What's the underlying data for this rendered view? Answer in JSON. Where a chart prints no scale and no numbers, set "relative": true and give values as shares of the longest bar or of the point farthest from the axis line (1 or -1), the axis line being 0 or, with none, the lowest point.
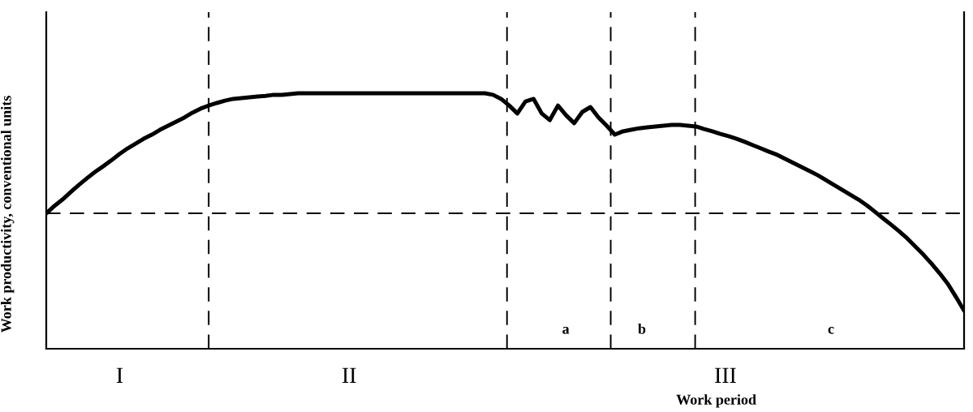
{
  "chart_data": {
    "type": "line",
    "relative": true,
    "xlabel": "Work period",
    "ylabel": "Work productivity, conventional units",
    "categories": [
      null,
      null,
      null,
      null,
      null,
      null,
      null,
      null,
      null,
      null,
      null,
      null,
      null,
      null,
      null,
      null,
      null,
      null,
      null,
      null,
      null,
      null,
      null,
      null,
      null,
      null,
      null,
      null,
      null,
      null,
      null,
      null,
      null,
      null,
      null,
      null,
      null,
      null,
      null,
      null,
      null,
      null,
      null,
      null,
      null,
      null,
      null,
      null,
      null,
      null,
      null,
      null,
      null,
      null,
      null,
      null,
      null,
      null,
      null,
      null,
      null,
      null,
      null,
      null,
      null,
      null,
      null,
      null,
      null,
      null,
      null,
      null,
      null,
      null,
      null,
      null,
      null,
      null,
      null,
      null,
      null,
      null,
      null,
      null,
      null,
      null,
      null,
      null,
      null,
      null,
      null,
      null,
      null,
      null,
      null,
      null,
      null,
      null,
      null,
      null,
      null,
      null,
      null,
      null,
      null,
      null,
      null,
      null,
      null,
      null,
      null,
      null,
      null,
      null
    ],
    "annotations": [
      "I",
      "II",
      "III",
      "a",
      "b",
      "c"
    ],
    "series": [
      {
        "color": "#000000",
        "values": [
          0.53,
          0.559,
          0.584,
          0.613,
          0.641,
          0.667,
          0.692,
          0.714,
          0.737,
          0.762,
          0.784,
          0.803,
          0.822,
          0.838,
          0.857,
          0.873,
          0.889,
          0.905,
          0.924,
          0.94,
          0.952,
          0.962,
          0.971,
          0.978,
          0.981,
          0.984,
          0.987,
          0.99,
          0.994,
          0.994,
          0.997,
          1.0,
          1.0,
          1.0,
          1.0,
          1.0,
          1.0,
          1.0,
          1.0,
          1.0,
          1.0,
          1.0,
          1.0,
          1.0,
          1.0,
          1.0,
          1.0,
          1.0,
          1.0,
          1.0,
          1.0,
          1.0,
          1.0,
          1.0,
          1.0,
          0.994,
          0.978,
          0.952,
          0.921,
          0.968,
          0.978,
          0.921,
          0.895,
          0.952,
          0.914,
          0.883,
          0.927,
          0.946,
          0.905,
          0.873,
          0.838,
          0.851,
          0.857,
          0.863,
          0.867,
          0.87,
          0.873,
          0.876,
          0.876,
          0.873,
          0.87,
          0.86,
          0.851,
          0.841,
          0.832,
          0.822,
          0.81,
          0.797,
          0.784,
          0.771,
          0.759,
          0.743,
          0.727,
          0.711,
          0.695,
          0.679,
          0.66,
          0.641,
          0.622,
          0.603,
          0.584,
          0.562,
          0.537,
          0.511,
          0.486,
          0.46,
          0.432,
          0.4,
          0.368,
          0.333,
          0.295,
          0.254,
          0.203,
          0.149
        ]
      }
    ],
    "ref_lines": [
      {
        "axis": "y",
        "value": 0.53,
        "line_style": "dashed",
        "color": "#000000"
      }
    ],
    "marker": "none",
    "line_style": "solid"
  }
}
